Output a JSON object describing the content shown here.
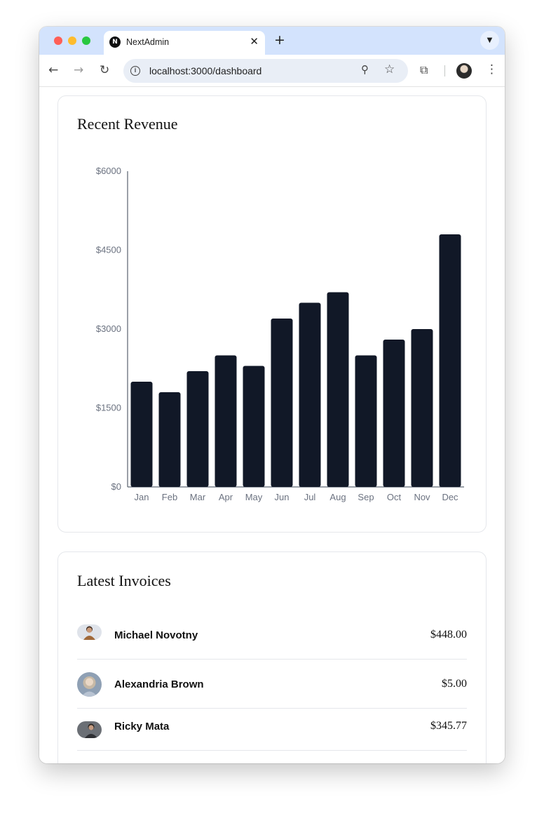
{
  "browser": {
    "tab_title": "NextAdmin",
    "tab_favicon": "N",
    "url": "localhost:3000/dashboard",
    "icons": {
      "close": "close-icon",
      "new_tab": "plus-icon",
      "back": "arrow-left-icon",
      "forward": "arrow-right-icon",
      "reload": "reload-icon",
      "site_info": "info-icon",
      "zoom": "zoom-icon",
      "bookmark": "star-icon",
      "extensions": "puzzle-icon",
      "menu": "kebab-menu-icon",
      "tab_search": "chevron-down-icon"
    }
  },
  "revenue": {
    "title": "Recent Revenue"
  },
  "chart_data": {
    "type": "bar",
    "title": "Recent Revenue",
    "xlabel": "",
    "ylabel": "",
    "categories": [
      "Jan",
      "Feb",
      "Mar",
      "Apr",
      "May",
      "Jun",
      "Jul",
      "Aug",
      "Sep",
      "Oct",
      "Nov",
      "Dec"
    ],
    "values": [
      2000,
      1800,
      2200,
      2500,
      2300,
      3200,
      3500,
      3700,
      2500,
      2800,
      3000,
      4800
    ],
    "ylim": [
      0,
      6000
    ],
    "yticks": [
      {
        "value": 0,
        "label": "$0"
      },
      {
        "value": 1500,
        "label": "$1500"
      },
      {
        "value": 3000,
        "label": "$3000"
      },
      {
        "value": 4500,
        "label": "$4500"
      },
      {
        "value": 6000,
        "label": "$6000"
      }
    ],
    "grid": false,
    "bar_color": "#111827"
  },
  "invoices": {
    "title": "Latest Invoices",
    "items": [
      {
        "name": "Michael Novotny",
        "amount": "$448.00"
      },
      {
        "name": "Alexandria Brown",
        "amount": "$5.00"
      },
      {
        "name": "Ricky Mata",
        "amount": "$345.77"
      }
    ]
  }
}
